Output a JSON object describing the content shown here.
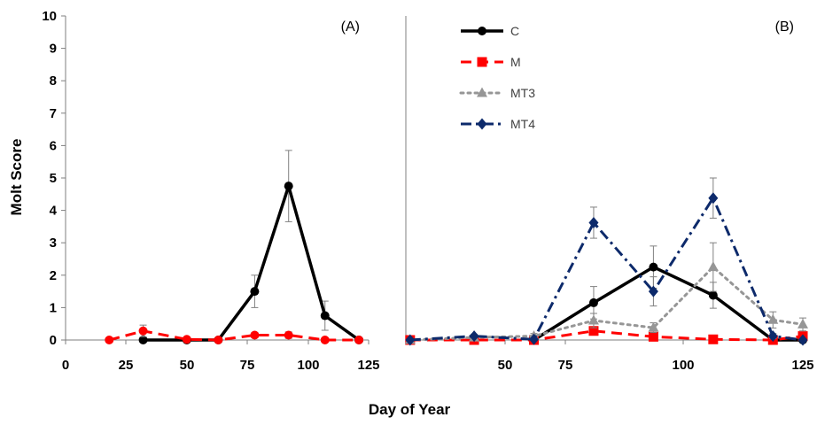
{
  "chart_data": [
    {
      "panel_label": "(A)",
      "type": "line",
      "xlim": [
        0,
        125
      ],
      "ylim": [
        0,
        10
      ],
      "x_ticks": [
        0,
        25,
        50,
        75,
        100,
        125
      ],
      "y_ticks": [
        0,
        1,
        2,
        3,
        4,
        5,
        6,
        7,
        8,
        9,
        10
      ],
      "series": [
        {
          "name": "C",
          "color": "#000000",
          "line_style": "solid",
          "marker": "circle",
          "x": [
            32,
            50,
            63,
            78,
            92,
            107,
            121
          ],
          "y": [
            0,
            0,
            0,
            1.5,
            4.75,
            0.75,
            0
          ],
          "err": [
            0,
            0,
            0,
            0.5,
            1.1,
            0.45,
            0
          ]
        },
        {
          "name": "M",
          "color": "#ff0000",
          "line_style": "dashed",
          "marker": "circle",
          "x": [
            18,
            32,
            50,
            63,
            78,
            92,
            107,
            121
          ],
          "y": [
            0,
            0.28,
            0.02,
            0,
            0.15,
            0.15,
            0,
            0
          ],
          "err": [
            0,
            0.18,
            0.05,
            0,
            0.08,
            0.1,
            0,
            0
          ]
        }
      ]
    },
    {
      "panel_label": "(B)",
      "type": "line",
      "xlim": [
        32,
        125
      ],
      "ylim": [
        0,
        10
      ],
      "x_ticks": [
        50,
        75,
        100,
        125
      ],
      "legend_position": "top-left",
      "series": [
        {
          "name": "C",
          "color": "#000000",
          "line_style": "solid",
          "marker": "circle",
          "x": [
            62,
            76,
            90,
            104,
            118,
            125
          ],
          "y": [
            0,
            1.15,
            2.25,
            1.38,
            0,
            0
          ],
          "err": [
            0,
            0.5,
            0.65,
            0.4,
            0,
            0
          ]
        },
        {
          "name": "M",
          "color": "#ff0000",
          "line_style": "dashed",
          "marker": "square",
          "x": [
            33,
            48,
            62,
            76,
            90,
            104,
            118,
            125
          ],
          "y": [
            0,
            0,
            0,
            0.28,
            0.1,
            0.02,
            0,
            0.12
          ],
          "err": [
            0,
            0,
            0,
            0.1,
            0.05,
            0,
            0,
            0.08
          ]
        },
        {
          "name": "MT3",
          "color": "#969696",
          "line_style": "dotted",
          "marker": "triangle",
          "x": [
            33,
            48,
            62,
            76,
            90,
            104,
            118,
            125
          ],
          "y": [
            0,
            0.08,
            0.12,
            0.6,
            0.38,
            2.25,
            0.62,
            0.48
          ],
          "err": [
            0,
            0.06,
            0.08,
            0.22,
            0.15,
            0.75,
            0.25,
            0.2
          ]
        },
        {
          "name": "MT4",
          "color": "#0d2a6b",
          "line_style": "dashdot",
          "marker": "diamond",
          "x": [
            33,
            48,
            62,
            76,
            90,
            104,
            118,
            125
          ],
          "y": [
            0,
            0.12,
            0.02,
            3.62,
            1.5,
            4.38,
            0.12,
            0
          ],
          "err": [
            0,
            0.06,
            0.04,
            0.48,
            0.45,
            0.62,
            0.08,
            0
          ]
        }
      ]
    }
  ],
  "axes": {
    "xlabel": "Day of Year",
    "ylabel": "Molt Score"
  }
}
